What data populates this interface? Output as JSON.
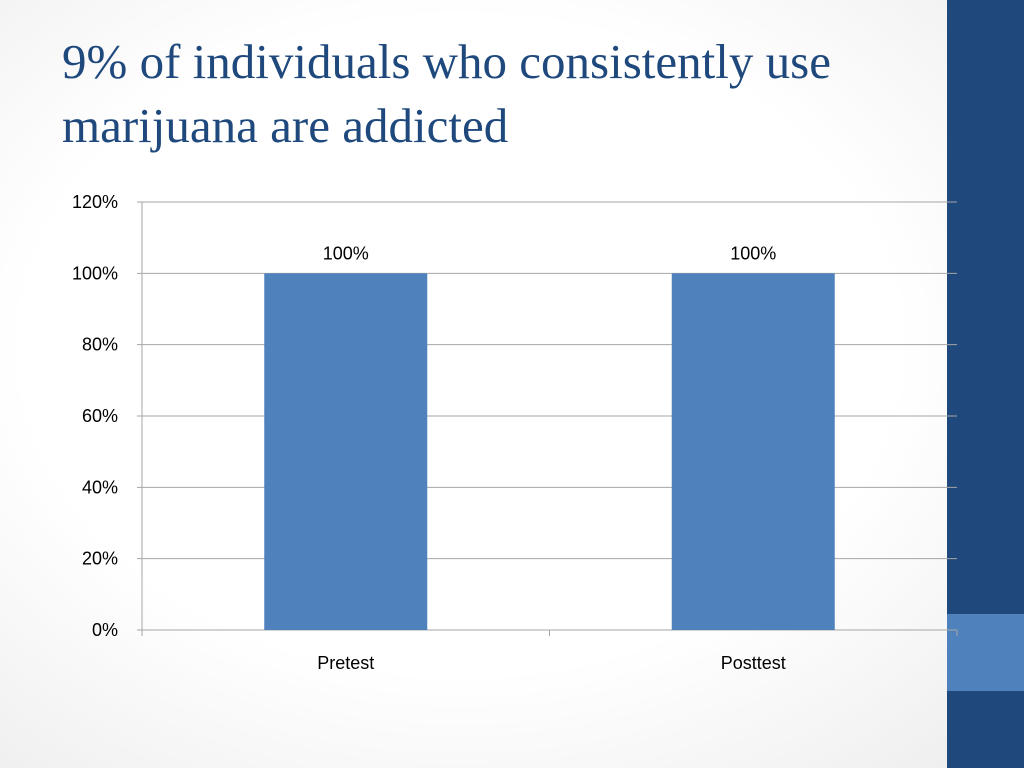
{
  "slide": {
    "title": "9% of individuals who consistently use marijuana are addicted"
  },
  "theme": {
    "title_color": "#1f497d",
    "band_color": "#1f497d",
    "accent_color": "#4f81bd",
    "bar_color": "#4f81bd",
    "grid_color": "#a6a6a6"
  },
  "chart_data": {
    "type": "bar",
    "categories": [
      "Pretest",
      "Posttest"
    ],
    "values": [
      100,
      100
    ],
    "data_labels": [
      "100%",
      "100%"
    ],
    "ylim": [
      0,
      120
    ],
    "ytick_values": [
      0,
      20,
      40,
      60,
      80,
      100,
      120
    ],
    "ytick_labels": [
      "0%",
      "20%",
      "40%",
      "60%",
      "80%",
      "100%",
      "120%"
    ],
    "grid": true,
    "legend": "none",
    "xlabel": "",
    "ylabel": ""
  }
}
